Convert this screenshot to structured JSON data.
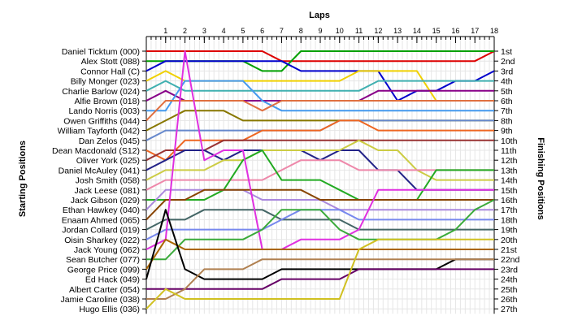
{
  "chart_data": {
    "type": "line",
    "title": "",
    "xlabel": "Laps",
    "ylabel_left": "Starting Positions",
    "ylabel_right": "Finishing Positions",
    "x_ticks": [
      1,
      2,
      3,
      4,
      5,
      6,
      7,
      8,
      9,
      10,
      11,
      12,
      13,
      14,
      15,
      16,
      17,
      18
    ],
    "position_labels": [
      "1st",
      "2nd",
      "3rd",
      "4th",
      "5th",
      "6th",
      "7th",
      "8th",
      "9th",
      "10th",
      "11th",
      "12th",
      "13th",
      "14th",
      "15th",
      "16th",
      "17th",
      "18th",
      "19th",
      "20th",
      "21st",
      "22nd",
      "23rd",
      "24th",
      "25th",
      "26th",
      "27th"
    ],
    "drivers": [
      "Daniel Ticktum (000)",
      "Alex Stott (088)",
      "Connor Hall (C)",
      "Billy Monger (023)",
      "Charlie Barlow (024)",
      "Alfie Brown (018)",
      "Lando Norris (003)",
      "Owen Griffiths (044)",
      "William Tayforth (042)",
      "Dan Zelos (045)",
      "Dean Macdonald (S12)",
      "Oliver York (025)",
      "Daniel McAuley (041)",
      "Josh Smith (058)",
      "Jack Leese (081)",
      "Jack Gibson (029)",
      "Ethan Hawkey (040)",
      "Enaam Ahmed (065)",
      "Jordan Collard (019)",
      "Oisin Sharkey (022)",
      "Jack Young (062)",
      "Sean Butcher (077)",
      "George Price (099)",
      "Ed Hack (049)",
      "Albert Carter (054)",
      "Jamie Caroline (038)",
      "Hugo Ellis (036)"
    ],
    "series": [
      {
        "color": "#dd0000",
        "values": [
          1,
          1,
          1,
          1,
          1,
          1,
          1,
          2,
          2,
          2,
          2,
          2,
          2,
          2,
          2,
          2,
          2,
          2,
          1
        ]
      },
      {
        "color": "#00a000",
        "values": [
          2,
          2,
          2,
          2,
          2,
          2,
          3,
          3,
          1,
          1,
          1,
          1,
          1,
          1,
          1,
          1,
          1,
          1,
          1
        ]
      },
      {
        "color": "#0000cc",
        "values": [
          3,
          2,
          2,
          2,
          2,
          2,
          2,
          2,
          3,
          3,
          3,
          3,
          3,
          6,
          5,
          5,
          4,
          4,
          3
        ]
      },
      {
        "color": "#f0d000",
        "values": [
          4,
          3,
          4,
          4,
          4,
          4,
          4,
          4,
          4,
          4,
          4,
          3,
          3,
          3,
          3,
          6,
          6,
          6,
          6
        ]
      },
      {
        "color": "#40b0b0",
        "values": [
          5,
          4,
          5,
          5,
          5,
          5,
          5,
          5,
          5,
          5,
          5,
          5,
          4,
          4,
          4,
          4,
          4,
          4,
          4
        ]
      },
      {
        "color": "#880088",
        "values": [
          6,
          5,
          6,
          6,
          6,
          6,
          6,
          6,
          6,
          6,
          6,
          6,
          5,
          5,
          5,
          5,
          5,
          5,
          5
        ]
      },
      {
        "color": "#4499ee",
        "values": [
          7,
          7,
          4,
          4,
          4,
          4,
          6,
          7,
          7,
          7,
          7,
          7,
          7,
          7,
          7,
          7,
          7,
          7,
          7
        ]
      },
      {
        "color": "#e07040",
        "values": [
          8,
          6,
          6,
          6,
          6,
          6,
          7,
          6,
          6,
          6,
          6,
          6,
          6,
          6,
          6,
          6,
          6,
          6,
          6
        ]
      },
      {
        "color": "#887700",
        "values": [
          9,
          8,
          7,
          7,
          7,
          8,
          8,
          8,
          8,
          8,
          8,
          8,
          8,
          8,
          8,
          8,
          8,
          8,
          8
        ]
      },
      {
        "color": "#6688cc",
        "values": [
          10,
          9,
          9,
          9,
          9,
          9,
          9,
          9,
          9,
          9,
          8,
          8,
          8,
          8,
          8,
          8,
          8,
          8,
          8
        ]
      },
      {
        "color": "#ee6622",
        "values": [
          11,
          12,
          10,
          10,
          10,
          10,
          9,
          9,
          9,
          9,
          8,
          8,
          9,
          9,
          9,
          9,
          9,
          9,
          9
        ]
      },
      {
        "color": "#993333",
        "values": [
          12,
          11,
          11,
          11,
          10,
          10,
          10,
          10,
          10,
          10,
          10,
          10,
          10,
          10,
          10,
          10,
          10,
          10,
          10
        ]
      },
      {
        "color": "#222288",
        "values": [
          13,
          12,
          11,
          11,
          12,
          11,
          11,
          11,
          11,
          12,
          11,
          11,
          13,
          13,
          15,
          15,
          15,
          15,
          15
        ]
      },
      {
        "color": "#cccc44",
        "values": [
          14,
          13,
          13,
          13,
          12,
          12,
          11,
          11,
          11,
          11,
          11,
          10,
          11,
          11,
          13,
          14,
          14,
          14,
          14
        ]
      },
      {
        "color": "#ee88aa",
        "values": [
          15,
          14,
          14,
          14,
          14,
          14,
          14,
          13,
          12,
          12,
          12,
          13,
          13,
          13,
          13,
          13,
          13,
          13,
          13
        ]
      },
      {
        "color": "#22aa22",
        "values": [
          16,
          16,
          16,
          16,
          15,
          12,
          11,
          14,
          14,
          14,
          15,
          16,
          16,
          16,
          16,
          13,
          13,
          13,
          13
        ]
      },
      {
        "color": "#aa88dd",
        "values": [
          17,
          15,
          15,
          15,
          15,
          15,
          16,
          16,
          16,
          16,
          17,
          17,
          17,
          17,
          17,
          17,
          17,
          17,
          17
        ]
      },
      {
        "color": "#884400",
        "values": [
          18,
          16,
          16,
          15,
          15,
          15,
          15,
          15,
          15,
          16,
          16,
          16,
          16,
          16,
          16,
          16,
          16,
          16,
          16
        ]
      },
      {
        "color": "#446666",
        "values": [
          19,
          18,
          18,
          17,
          17,
          17,
          17,
          18,
          18,
          18,
          18,
          19,
          19,
          19,
          19,
          19,
          19,
          19,
          19
        ]
      },
      {
        "color": "#7788ee",
        "values": [
          20,
          19,
          19,
          19,
          19,
          19,
          19,
          18,
          17,
          17,
          17,
          18,
          18,
          18,
          18,
          18,
          18,
          18,
          18
        ]
      },
      {
        "color": "#e030e0",
        "values": [
          21,
          20,
          1,
          12,
          11,
          11,
          21,
          21,
          20,
          20,
          20,
          19,
          15,
          15,
          15,
          15,
          15,
          15,
          15
        ]
      },
      {
        "color": "#3aaa3a",
        "values": [
          22,
          22,
          20,
          20,
          20,
          20,
          19,
          17,
          17,
          17,
          19,
          20,
          20,
          20,
          20,
          20,
          19,
          17,
          16
        ]
      },
      {
        "color": "#aa6600",
        "values": [
          23,
          20,
          21,
          21,
          21,
          21,
          21,
          21,
          21,
          21,
          21,
          21,
          21,
          21,
          21,
          21,
          21,
          21,
          21
        ]
      },
      {
        "color": "#000000",
        "values": [
          24,
          17,
          23,
          24,
          24,
          24,
          24,
          23,
          23,
          23,
          23,
          23,
          23,
          23,
          23,
          23,
          22,
          22,
          22
        ]
      },
      {
        "color": "#660066",
        "values": [
          25,
          25,
          25,
          25,
          25,
          25,
          25,
          24,
          24,
          24,
          24,
          23,
          23,
          23,
          23,
          23,
          23,
          23,
          23
        ]
      },
      {
        "color": "#b08050",
        "values": [
          26,
          26,
          25,
          23,
          23,
          23,
          22,
          22,
          22,
          22,
          22,
          22,
          22,
          22,
          22,
          22,
          22,
          22,
          22
        ]
      },
      {
        "color": "#d0c020",
        "values": [
          27,
          25,
          26,
          26,
          26,
          26,
          26,
          26,
          26,
          26,
          26,
          21,
          20,
          20,
          20,
          20,
          20,
          20,
          20
        ]
      }
    ]
  }
}
